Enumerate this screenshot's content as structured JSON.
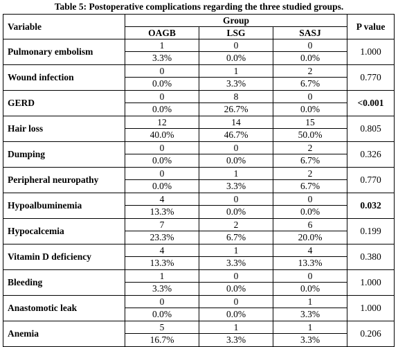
{
  "caption": "Table 5: Postoperative complications regarding the three studied groups.",
  "header": {
    "variable": "Variable",
    "group": "Group",
    "p_value": "P value",
    "groups": [
      "OAGB",
      "LSG",
      "SASJ"
    ]
  },
  "rows": [
    {
      "variable": "Pulmonary embolism",
      "n": [
        "1",
        "0",
        "0"
      ],
      "pct": [
        "3.3%",
        "0.0%",
        "0.0%"
      ],
      "p": "1.000",
      "p_bold": false
    },
    {
      "variable": "Wound infection",
      "n": [
        "0",
        "1",
        "2"
      ],
      "pct": [
        "0.0%",
        "3.3%",
        "6.7%"
      ],
      "p": "0.770",
      "p_bold": false
    },
    {
      "variable": "GERD",
      "n": [
        "0",
        "8",
        "0"
      ],
      "pct": [
        "0.0%",
        "26.7%",
        "0.0%"
      ],
      "p": "<0.001",
      "p_bold": true
    },
    {
      "variable": "Hair loss",
      "n": [
        "12",
        "14",
        "15"
      ],
      "pct": [
        "40.0%",
        "46.7%",
        "50.0%"
      ],
      "p": "0.805",
      "p_bold": false
    },
    {
      "variable": "Dumping",
      "n": [
        "0",
        "0",
        "2"
      ],
      "pct": [
        "0.0%",
        "0.0%",
        "6.7%"
      ],
      "p": "0.326",
      "p_bold": false
    },
    {
      "variable": "Peripheral neuropathy",
      "n": [
        "0",
        "1",
        "2"
      ],
      "pct": [
        "0.0%",
        "3.3%",
        "6.7%"
      ],
      "p": "0.770",
      "p_bold": false
    },
    {
      "variable": "Hypoalbuminemia",
      "n": [
        "4",
        "0",
        "0"
      ],
      "pct": [
        "13.3%",
        "0.0%",
        "0.0%"
      ],
      "p": "0.032",
      "p_bold": true
    },
    {
      "variable": "Hypocalcemia",
      "n": [
        "7",
        "2",
        "6"
      ],
      "pct": [
        "23.3%",
        "6.7%",
        "20.0%"
      ],
      "p": "0.199",
      "p_bold": false
    },
    {
      "variable": "Vitamin D deficiency",
      "n": [
        "4",
        "1",
        "4"
      ],
      "pct": [
        "13.3%",
        "3.3%",
        "13.3%"
      ],
      "p": "0.380",
      "p_bold": false
    },
    {
      "variable": "Bleeding",
      "n": [
        "1",
        "0",
        "0"
      ],
      "pct": [
        "3.3%",
        "0.0%",
        "0.0%"
      ],
      "p": "1.000",
      "p_bold": false
    },
    {
      "variable": "Anastomotic leak",
      "n": [
        "0",
        "0",
        "1"
      ],
      "pct": [
        "0.0%",
        "0.0%",
        "3.3%"
      ],
      "p": "1.000",
      "p_bold": false
    },
    {
      "variable": "Anemia",
      "n": [
        "5",
        "1",
        "1"
      ],
      "pct": [
        "16.7%",
        "3.3%",
        "3.3%"
      ],
      "p": "0.206",
      "p_bold": false
    }
  ]
}
